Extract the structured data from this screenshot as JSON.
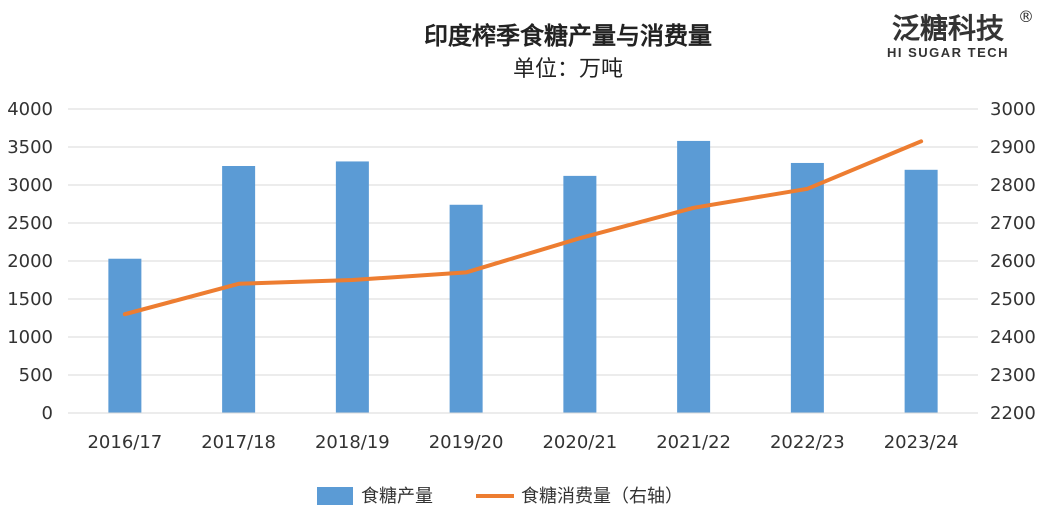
{
  "brand": {
    "name_cn": "泛糖科技",
    "name_en": "HI SUGAR TECH",
    "registered_mark": "®"
  },
  "chart_data": {
    "type": "bar",
    "title": "印度榨季食糖产量与消费量",
    "subtitle": "单位：万吨",
    "categories": [
      "2016/17",
      "2017/18",
      "2018/19",
      "2019/20",
      "2020/21",
      "2021/22",
      "2022/23",
      "2023/24"
    ],
    "series": [
      {
        "name": "食糖产量",
        "type": "bar",
        "axis": "left",
        "color": "#5b9bd5",
        "values": [
          2030,
          3250,
          3310,
          2740,
          3120,
          3580,
          3290,
          3200
        ]
      },
      {
        "name": "食糖消费量（右轴）",
        "type": "line",
        "axis": "right",
        "color": "#ed7d31",
        "values": [
          2460,
          2540,
          2550,
          2570,
          2660,
          2740,
          2790,
          2915
        ]
      }
    ],
    "y_left": {
      "min": 0,
      "max": 4000,
      "step": 500,
      "ticks": [
        "0",
        "500",
        "1000",
        "1500",
        "2000",
        "2500",
        "3000",
        "3500",
        "4000"
      ]
    },
    "y_right": {
      "min": 2200,
      "max": 3000,
      "step": 100,
      "ticks": [
        "2200",
        "2300",
        "2400",
        "2500",
        "2600",
        "2700",
        "2800",
        "2900",
        "3000"
      ]
    },
    "grid": true,
    "legend_position": "bottom"
  }
}
